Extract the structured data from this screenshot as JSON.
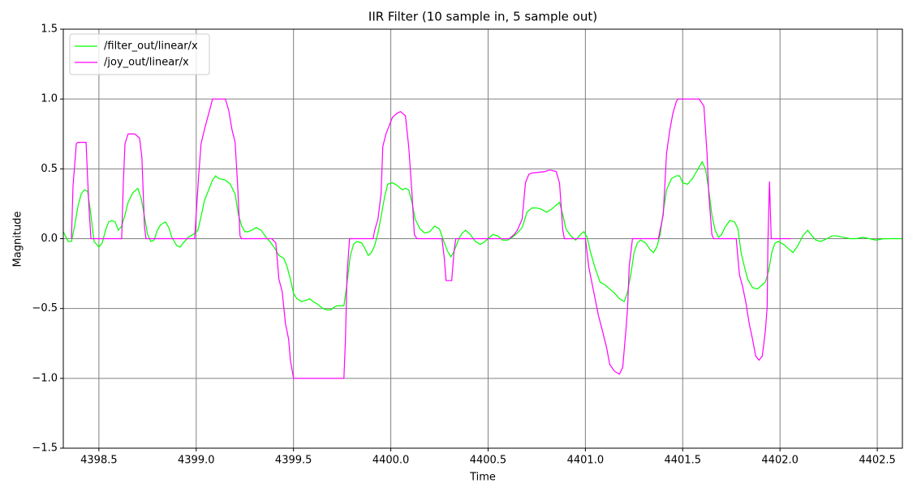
{
  "chart_data": {
    "type": "line",
    "title": "IIR Filter (10 sample in, 5 sample out)",
    "xlabel": "Time",
    "ylabel": "Magnitude",
    "xlim": [
      4398.317,
      4402.629
    ],
    "ylim": [
      -1.5,
      1.5
    ],
    "xticks": [
      4398.5,
      {
        "value": 4399,
        "label": "4399.0"
      },
      4399.5,
      {
        "value": 4400,
        "label": "4400.0"
      },
      4400.5,
      {
        "value": 4401,
        "label": "4401.0"
      },
      4401.5,
      {
        "value": 4402,
        "label": "4402.0"
      },
      4402.5
    ],
    "yticks": [
      {
        "value": -1.5,
        "label": "−1.5"
      },
      {
        "value": -1,
        "label": "−1.0"
      },
      {
        "value": -0.5,
        "label": "−0.5"
      },
      {
        "value": 0,
        "label": "0.0"
      },
      0.5,
      {
        "value": 1,
        "label": "1.0"
      },
      1.5
    ],
    "grid": true,
    "legend": "upper left",
    "series": [
      {
        "name": "/filter_out/linear/x",
        "color": "#00ff00",
        "x": [
          4398.317,
          4398.342,
          4398.359,
          4398.375,
          4398.392,
          4398.409,
          4398.425,
          4398.442,
          4398.459,
          4398.475,
          4398.5,
          4398.517,
          4398.534,
          4398.55,
          4398.567,
          4398.584,
          4398.6,
          4398.617,
          4398.634,
          4398.65,
          4398.675,
          4398.7,
          4398.717,
          4398.734,
          4398.75,
          4398.767,
          4398.784,
          4398.8,
          4398.817,
          4398.842,
          4398.859,
          4398.875,
          4398.9,
          4398.917,
          4398.934,
          4398.959,
          4398.984,
          4399.009,
          4399.025,
          4399.042,
          4399.067,
          4399.084,
          4399.1,
          4399.117,
          4399.15,
          4399.175,
          4399.2,
          4399.217,
          4399.234,
          4399.25,
          4399.267,
          4399.284,
          4399.309,
          4399.334,
          4399.359,
          4399.384,
          4399.409,
          4399.425,
          4399.45,
          4399.467,
          4399.484,
          4399.5,
          4399.517,
          4399.542,
          4399.567,
          4399.584,
          4399.6,
          4399.625,
          4399.65,
          4399.675,
          4399.692,
          4399.709,
          4399.725,
          4399.759,
          4399.775,
          4399.792,
          4399.809,
          4399.825,
          4399.85,
          4399.867,
          4399.884,
          4399.9,
          4399.917,
          4399.934,
          4399.95,
          4399.967,
          4399.984,
          4400.009,
          4400.034,
          4400.059,
          4400.075,
          4400.092,
          4400.109,
          4400.125,
          4400.15,
          4400.175,
          4400.2,
          4400.225,
          4400.25,
          4400.275,
          4400.292,
          4400.309,
          4400.325,
          4400.35,
          4400.367,
          4400.384,
          4400.409,
          4400.434,
          4400.459,
          4400.475,
          4400.5,
          4400.525,
          4400.55,
          4400.575,
          4400.6,
          4400.625,
          4400.65,
          4400.675,
          4400.7,
          4400.725,
          4400.75,
          4400.775,
          4400.8,
          4400.825,
          4400.85,
          4400.867,
          4400.884,
          4400.9,
          4400.925,
          4400.95,
          4400.975,
          4400.992,
          4401.009,
          4401.025,
          4401.05,
          4401.075,
          4401.1,
          4401.125,
          4401.15,
          4401.175,
          4401.2,
          4401.217,
          4401.234,
          4401.25,
          4401.267,
          4401.284,
          4401.309,
          4401.334,
          4401.35,
          4401.367,
          4401.384,
          4401.4,
          4401.417,
          4401.442,
          4401.467,
          4401.484,
          4401.5,
          4401.525,
          4401.55,
          4401.575,
          4401.6,
          4401.617,
          4401.634,
          4401.65,
          4401.667,
          4401.684,
          4401.7,
          4401.717,
          4401.742,
          4401.767,
          4401.784,
          4401.8,
          4401.817,
          4401.834,
          4401.859,
          4401.884,
          4401.909,
          4401.925,
          4401.942,
          4401.959,
          4401.975,
          4401.992,
          4402.017,
          4402.042,
          4402.067,
          4402.092,
          4402.117,
          4402.142,
          4402.159,
          4402.184,
          4402.209,
          4402.242,
          4402.267,
          4402.292,
          4402.325,
          4402.359,
          4402.392,
          4402.425,
          4402.459,
          4402.492,
          4402.534,
          4402.575,
          4402.625
        ],
        "values": [
          0.05,
          -0.02,
          -0.02,
          0.09,
          0.23,
          0.32,
          0.35,
          0.34,
          0.17,
          -0.02,
          -0.06,
          -0.03,
          0.06,
          0.12,
          0.13,
          0.12,
          0.06,
          0.09,
          0.17,
          0.26,
          0.33,
          0.36,
          0.29,
          0.16,
          0.03,
          -0.02,
          -0.01,
          0.06,
          0.1,
          0.12,
          0.08,
          0.01,
          -0.05,
          -0.06,
          -0.03,
          0.01,
          0.03,
          0.06,
          0.16,
          0.27,
          0.36,
          0.42,
          0.45,
          0.43,
          0.42,
          0.39,
          0.32,
          0.17,
          0.09,
          0.05,
          0.05,
          0.06,
          0.08,
          0.06,
          0.01,
          -0.03,
          -0.08,
          -0.12,
          -0.14,
          -0.2,
          -0.29,
          -0.39,
          -0.43,
          -0.45,
          -0.44,
          -0.43,
          -0.45,
          -0.47,
          -0.5,
          -0.51,
          -0.51,
          -0.49,
          -0.48,
          -0.48,
          -0.32,
          -0.12,
          -0.04,
          -0.02,
          -0.03,
          -0.07,
          -0.12,
          -0.1,
          -0.05,
          0.04,
          0.16,
          0.29,
          0.39,
          0.4,
          0.38,
          0.35,
          0.36,
          0.35,
          0.26,
          0.14,
          0.07,
          0.04,
          0.05,
          0.09,
          0.07,
          -0.03,
          -0.09,
          -0.13,
          -0.09,
          0,
          0.04,
          0.06,
          0.03,
          -0.02,
          -0.04,
          -0.03,
          0,
          0.03,
          0.02,
          -0.01,
          -0.01,
          0.01,
          0.04,
          0.08,
          0.19,
          0.22,
          0.22,
          0.21,
          0.19,
          0.21,
          0.24,
          0.26,
          0.17,
          0.07,
          0.02,
          -0.01,
          0.03,
          0.05,
          0.01,
          -0.09,
          -0.21,
          -0.31,
          -0.33,
          -0.36,
          -0.39,
          -0.43,
          -0.45,
          -0.38,
          -0.25,
          -0.1,
          -0.03,
          -0.01,
          -0.03,
          -0.08,
          -0.1,
          -0.06,
          0.03,
          0.19,
          0.35,
          0.43,
          0.45,
          0.45,
          0.4,
          0.39,
          0.43,
          0.49,
          0.55,
          0.5,
          0.35,
          0.17,
          0.06,
          0.01,
          0.03,
          0.08,
          0.13,
          0.12,
          0.07,
          -0.1,
          -0.2,
          -0.29,
          -0.35,
          -0.36,
          -0.33,
          -0.31,
          -0.23,
          -0.09,
          -0.03,
          -0.02,
          -0.04,
          -0.07,
          -0.1,
          -0.05,
          0.02,
          0.06,
          0.03,
          -0.01,
          -0.02,
          0,
          0.02,
          0.02,
          0.01,
          0,
          0,
          0.01,
          0,
          -0.01,
          0,
          0,
          0
        ]
      },
      {
        "name": "/joy_out/linear/x",
        "color": "#ff00ff",
        "x": [
          4398.359,
          4398.367,
          4398.384,
          4398.392,
          4398.434,
          4398.442,
          4398.45,
          4398.459,
          4398.617,
          4398.625,
          4398.634,
          4398.65,
          4398.684,
          4398.709,
          4398.721,
          4398.734,
          4398.742,
          4398.992,
          4399.013,
          4399.025,
          4399.042,
          4399.067,
          4399.084,
          4399.15,
          4399.167,
          4399.184,
          4399.2,
          4399.213,
          4399.225,
          4399.234,
          4399.388,
          4399.409,
          4399.425,
          4399.442,
          4399.45,
          4399.459,
          4399.475,
          4399.484,
          4399.5,
          4399.759,
          4399.767,
          4399.775,
          4399.788,
          4399.909,
          4399.917,
          4399.934,
          4399.95,
          4399.959,
          4399.975,
          4399.992,
          4400.009,
          4400.034,
          4400.05,
          4400.075,
          4400.092,
          4400.109,
          4400.121,
          4400.134,
          4400.263,
          4400.275,
          4400.284,
          4400.313,
          4400.325,
          4400.334,
          4400.609,
          4400.634,
          4400.65,
          4400.675,
          4400.692,
          4400.709,
          4400.725,
          4400.792,
          4400.809,
          4400.825,
          4400.85,
          4400.867,
          4400.884,
          4400.892,
          4401,
          4401.017,
          4401.034,
          4401.05,
          4401.067,
          4401.084,
          4401.109,
          4401.125,
          4401.15,
          4401.175,
          4401.192,
          4401.209,
          4401.217,
          4401.225,
          4401.242,
          4401.375,
          4401.4,
          4401.417,
          4401.434,
          4401.45,
          4401.467,
          4401.475,
          4401.584,
          4401.609,
          4401.625,
          4401.634,
          4401.65,
          4401.659,
          4401.775,
          4401.792,
          4401.809,
          4401.825,
          4401.842,
          4401.859,
          4401.875,
          4401.892,
          4401.909,
          4401.925,
          4401.934,
          4401.938,
          4401.946,
          4401.955,
          4402.055
        ],
        "values": [
          0,
          0.38,
          0.68,
          0.69,
          0.69,
          0.43,
          0.2,
          0,
          0,
          0.38,
          0.68,
          0.75,
          0.75,
          0.72,
          0.58,
          0.09,
          0,
          0,
          0.46,
          0.68,
          0.78,
          0.91,
          1,
          1,
          0.92,
          0.78,
          0.69,
          0.38,
          0.02,
          0,
          0,
          -0.03,
          -0.29,
          -0.38,
          -0.49,
          -0.61,
          -0.72,
          -0.87,
          -1,
          -1,
          -0.72,
          -0.26,
          0,
          0,
          0.06,
          0.14,
          0.32,
          0.66,
          0.75,
          0.81,
          0.87,
          0.9,
          0.91,
          0.88,
          0.66,
          0.32,
          0.03,
          0,
          0,
          -0.14,
          -0.3,
          -0.3,
          -0.09,
          0,
          0,
          0.03,
          0.06,
          0.14,
          0.4,
          0.46,
          0.47,
          0.48,
          0.49,
          0.49,
          0.48,
          0.4,
          0.06,
          0,
          0,
          -0.2,
          -0.32,
          -0.43,
          -0.55,
          -0.64,
          -0.78,
          -0.9,
          -0.95,
          -0.97,
          -0.92,
          -0.64,
          -0.49,
          -0.2,
          0,
          0,
          0.17,
          0.61,
          0.78,
          0.9,
          0.98,
          1,
          1,
          0.95,
          0.61,
          0.32,
          0.03,
          0,
          0,
          -0.26,
          -0.35,
          -0.46,
          -0.61,
          -0.72,
          -0.84,
          -0.87,
          -0.84,
          -0.66,
          -0.49,
          -0.03,
          0.41,
          0,
          0
        ]
      }
    ]
  }
}
